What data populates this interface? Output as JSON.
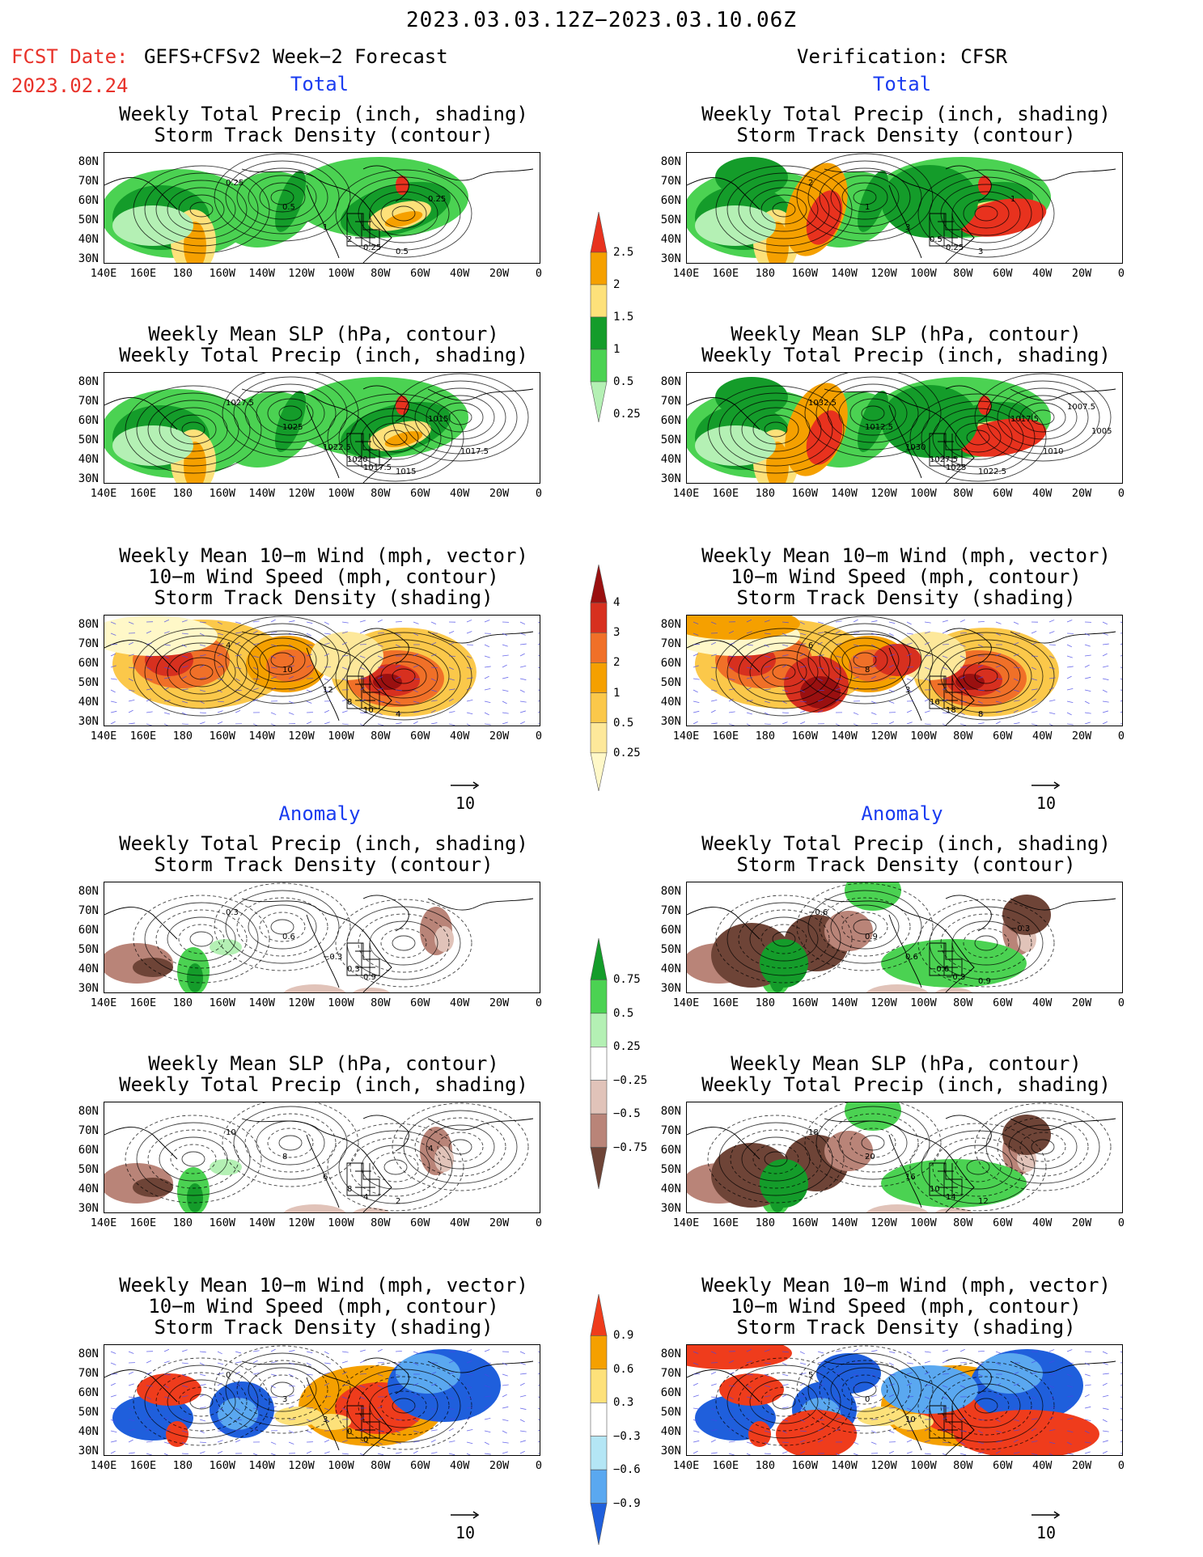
{
  "header": {
    "date_range": "2023.03.03.12Z−2023.03.10.06Z",
    "fcst_label": "FCST Date:",
    "fcst_date": "2023.02.24",
    "fcst_desc": "GEFS+CFSv2 Week−2 Forecast",
    "verification": "Verification: CFSR"
  },
  "sections": {
    "total": "Total",
    "anomaly": "Anomaly"
  },
  "panel_titles": {
    "precip_storm": "Weekly Total Precip (inch, shading)\nStorm Track Density (contour)",
    "slp_precip": "Weekly Mean SLP (hPa, contour)\nWeekly Total Precip (inch, shading)",
    "wind": "Weekly Mean 10−m Wind (mph, vector)\n10−m Wind Speed (mph, contour)\nStorm Track Density (shading)"
  },
  "axes": {
    "y_labels": [
      "80N",
      "70N",
      "60N",
      "50N",
      "40N",
      "30N"
    ],
    "x_labels": [
      "140E",
      "160E",
      "180",
      "160W",
      "140W",
      "120W",
      "100W",
      "80W",
      "60W",
      "40W",
      "20W",
      "0"
    ]
  },
  "vector_reference": "10",
  "colorbars": {
    "total_precip": {
      "labels": [
        "2.5",
        "2",
        "1.5",
        "1",
        "0.5",
        "0.25"
      ],
      "colors": [
        "#e8321e",
        "#f5a000",
        "#fde17a",
        "#149c2a",
        "#4bd252",
        "#b4f0b4"
      ]
    },
    "total_storm": {
      "labels": [
        "4",
        "3",
        "2",
        "1",
        "0.5",
        "0.25"
      ],
      "colors": [
        "#9a1010",
        "#d7301f",
        "#f07028",
        "#f5a000",
        "#fbc84a",
        "#fde89a",
        "#fff8c8"
      ]
    },
    "anom_precip": {
      "labels": [
        "0.75",
        "0.5",
        "0.25",
        "−0.25",
        "−0.5",
        "−0.75"
      ],
      "colors": [
        "#149c2a",
        "#4bd252",
        "#b4f0b4",
        "#ffffff",
        "#e1c3b9",
        "#b98478",
        "#6e4437"
      ]
    },
    "anom_storm": {
      "labels": [
        "0.9",
        "0.6",
        "0.3",
        "−0.3",
        "−0.6",
        "−0.9"
      ],
      "colors": [
        "#ef3c1c",
        "#f5a000",
        "#fde17a",
        "#ffffff",
        "#b4e6f5",
        "#5aa8f0",
        "#1f5fdc"
      ]
    }
  },
  "contour_labels": {
    "fcst_total_precip": [
      "0.25",
      "0.5",
      "1",
      "2",
      "0.25",
      "0.5",
      "0.25"
    ],
    "obs_total_precip": [
      "2",
      "1",
      "3",
      "0.5",
      "0.25",
      "3",
      "1"
    ],
    "fcst_slp": [
      "1027.5",
      "1025",
      "1022.5",
      "1020",
      "1017.5",
      "1015",
      "1015",
      "1017.5"
    ],
    "obs_slp": [
      "1032.5",
      "1012.5",
      "1030",
      "1027.5",
      "1025",
      "1022.5",
      "1017.5",
      "1010",
      "1007.5",
      "1005"
    ],
    "fcst_wind": [
      "4",
      "10",
      "12",
      "8",
      "10",
      "4"
    ],
    "obs_wind": [
      "6",
      "8",
      "3",
      "16",
      "18",
      "8"
    ],
    "fcst_anom_precip": [
      "0.3",
      "0.6",
      "−0.3",
      "0.3",
      "0.9"
    ],
    "obs_anom_precip": [
      "−0.6",
      "0.9",
      "0.6",
      "−0.6",
      "−0.3",
      "0.9",
      "−0.3"
    ],
    "fcst_anom_slp": [
      "10",
      "8",
      "6",
      "8",
      "4",
      "2",
      "4"
    ],
    "obs_anom_slp": [
      "18",
      "20",
      "16",
      "10",
      "14",
      "12"
    ],
    "fcst_anom_wind": [
      "0",
      "3",
      "3",
      "0",
      "0"
    ],
    "obs_anom_wind": [
      "5",
      "0",
      "10"
    ]
  }
}
